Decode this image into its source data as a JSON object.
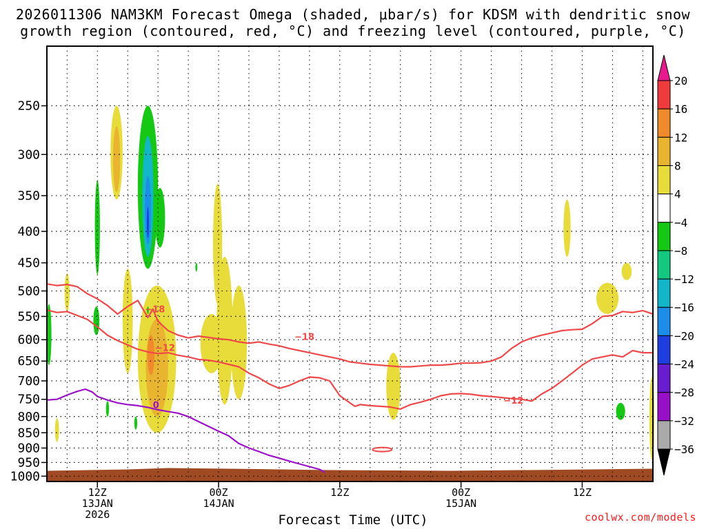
{
  "title_line1": "2026011306 NAM3KM Forecast Omega (shaded, μbar/s) for KDSM with dendritic snow",
  "title_line2": "growth region (contoured, red, °C) and freezing level (contoured, purple, °C)",
  "credit": "coolwx.com/models",
  "chart_data": {
    "type": "heatmap",
    "title": "2026011306 NAM3KM Forecast Omega (shaded, μbar/s) for KDSM with dendritic snow growth region (contoured, red, °C) and freezing level (contoured, purple, °C)",
    "xlabel": "Forecast Time (UTC)",
    "ylabel": "",
    "x_unit": "hours from 2026-01-13 07Z",
    "xlim": [
      0,
      60
    ],
    "ylim": [
      1020,
      200
    ],
    "y_scale": "log-pressure",
    "y_ticks": [
      250,
      300,
      350,
      400,
      450,
      500,
      550,
      600,
      650,
      700,
      750,
      800,
      850,
      900,
      950,
      1000
    ],
    "x_ticks": [
      {
        "x": 5,
        "label": [
          "12Z",
          "13JAN",
          "2026"
        ]
      },
      {
        "x": 17,
        "label": [
          "00Z",
          "14JAN"
        ]
      },
      {
        "x": 29,
        "label": [
          "12Z"
        ]
      },
      {
        "x": 41,
        "label": [
          "00Z",
          "15JAN"
        ]
      },
      {
        "x": 53,
        "label": [
          "12Z"
        ]
      }
    ],
    "grid": true,
    "colorbar": {
      "labels": [
        "20",
        "16",
        "12",
        "8",
        "4",
        "−4",
        "−8",
        "−12",
        "−16",
        "−20",
        "−24",
        "−28",
        "−32",
        "−36"
      ],
      "top_color": "#e8198f",
      "colors": [
        "#ef3b3b",
        "#f08a2a",
        "#e9b430",
        "#e8dc3a",
        "#ffffff",
        "#14c814",
        "#12c97f",
        "#12b6c8",
        "#1c8de8",
        "#1f3ee0",
        "#6a1cd0",
        "#9710c8",
        "#aaaaaa"
      ],
      "bottom_color": "#000000"
    },
    "terrain": {
      "color": "#a04a24",
      "pressure": 975
    },
    "contours": [
      {
        "level": "−18",
        "color": "#f04848",
        "x": [
          0,
          1,
          2,
          3,
          4,
          5,
          6,
          7,
          8,
          9,
          10,
          10.5,
          11,
          12,
          13,
          14,
          15,
          16,
          17,
          18,
          19,
          20,
          21,
          22,
          23,
          24,
          25,
          26,
          27,
          28,
          29,
          30,
          31,
          32,
          33,
          34,
          35,
          36,
          37,
          38,
          39,
          40,
          41,
          42,
          43,
          44,
          45,
          46,
          47,
          48,
          49,
          50,
          51,
          52,
          53,
          54,
          55,
          56,
          57,
          58,
          59,
          60
        ],
        "p": [
          487,
          490,
          488,
          492,
          505,
          515,
          528,
          545,
          530,
          518,
          552,
          535,
          560,
          580,
          590,
          596,
          592,
          595,
          598,
          600,
          605,
          608,
          605,
          610,
          614,
          620,
          625,
          630,
          635,
          640,
          645,
          652,
          655,
          658,
          660,
          662,
          664,
          664,
          662,
          660,
          660,
          658,
          655,
          655,
          654,
          650,
          640,
          620,
          605,
          596,
          590,
          585,
          580,
          578,
          577,
          565,
          550,
          548,
          540,
          542,
          538,
          545
        ],
        "labels": [
          {
            "x": 10.7,
            "p": 535,
            "text": "−18"
          },
          {
            "x": 25.5,
            "p": 593,
            "text": "−18"
          }
        ]
      },
      {
        "level": "−12",
        "color": "#f04848",
        "x": [
          0,
          1,
          2,
          3,
          4,
          5,
          6,
          7,
          8,
          9,
          10,
          11,
          12,
          13,
          14,
          15,
          16,
          17,
          18,
          19,
          20,
          21,
          22,
          23,
          24,
          25,
          26,
          27,
          28,
          29,
          30,
          30.5,
          31,
          32,
          33,
          34,
          35,
          36,
          37,
          38,
          39,
          40,
          41,
          42,
          43,
          44,
          45,
          46,
          47,
          48,
          49,
          50,
          51,
          52,
          53,
          54,
          55,
          56,
          57,
          58,
          59,
          60
        ],
        "p": [
          537,
          542,
          540,
          548,
          556,
          572,
          590,
          602,
          612,
          622,
          628,
          632,
          630,
          636,
          640,
          646,
          648,
          652,
          658,
          664,
          680,
          692,
          708,
          720,
          712,
          700,
          690,
          692,
          700,
          740,
          760,
          770,
          765,
          768,
          770,
          772,
          778,
          765,
          758,
          750,
          740,
          735,
          734,
          736,
          740,
          742,
          745,
          748,
          750,
          755,
          735,
          720,
          700,
          680,
          660,
          645,
          640,
          635,
          640,
          625,
          630,
          630
        ],
        "labels": [
          {
            "x": 11.7,
            "p": 618,
            "text": "−12"
          },
          {
            "x": 46.2,
            "p": 752,
            "text": "−12"
          }
        ]
      },
      {
        "level": "0",
        "color": "#9b10c8",
        "x": [
          0,
          1,
          2,
          3,
          3.8,
          4.5,
          5,
          6,
          7,
          8,
          9,
          10,
          11,
          12,
          13,
          14,
          15,
          16,
          17,
          18,
          19,
          20,
          21,
          22,
          23,
          24,
          25,
          26,
          27,
          27.5
        ],
        "p": [
          752,
          750,
          738,
          728,
          722,
          730,
          742,
          752,
          760,
          765,
          768,
          773,
          780,
          785,
          790,
          800,
          815,
          830,
          845,
          860,
          885,
          900,
          912,
          925,
          935,
          945,
          955,
          965,
          975,
          985
        ],
        "labels": [
          {
            "x": 10.8,
            "p": 765,
            "text": "0"
          }
        ]
      }
    ],
    "omega_areas": [
      {
        "value": 6,
        "color": "#e8dc3a",
        "cx": 6.9,
        "p1": 250,
        "p2": 355,
        "rx": 0.6
      },
      {
        "value": 10,
        "color": "#e9b430",
        "cx": 6.9,
        "p1": 270,
        "p2": 345,
        "rx": 0.35
      },
      {
        "value": -8,
        "color": "#14c814",
        "cx": 10.0,
        "p1": 250,
        "p2": 460,
        "rx": 1.0
      },
      {
        "value": -12,
        "color": "#12b6c8",
        "cx": 10.0,
        "p1": 280,
        "p2": 440,
        "rx": 0.55
      },
      {
        "value": -16,
        "color": "#1c8de8",
        "cx": 10.0,
        "p1": 325,
        "p2": 420,
        "rx": 0.3
      },
      {
        "value": -20,
        "color": "#1f3ee0",
        "cx": 10.0,
        "p1": 365,
        "p2": 410,
        "rx": 0.1
      },
      {
        "value": -6,
        "color": "#14c814",
        "cx": 11.2,
        "p1": 340,
        "p2": 425,
        "rx": 0.5
      },
      {
        "value": -6,
        "color": "#14c814",
        "cx": 5.0,
        "p1": 330,
        "p2": 470,
        "rx": 0.25
      },
      {
        "value": 6,
        "color": "#e8dc3a",
        "cx": 8.0,
        "p1": 460,
        "p2": 680,
        "rx": 0.5
      },
      {
        "value": 6,
        "color": "#e8dc3a",
        "cx": 10.9,
        "p1": 490,
        "p2": 850,
        "rx": 1.9
      },
      {
        "value": 10,
        "color": "#e9b430",
        "cx": 10.9,
        "p1": 555,
        "p2": 800,
        "rx": 1.1
      },
      {
        "value": 14,
        "color": "#f08a2a",
        "cx": 10.3,
        "p1": 590,
        "p2": 685,
        "rx": 0.35
      },
      {
        "value": 5,
        "color": "#e8dc3a",
        "cx": 16.9,
        "p1": 335,
        "p2": 525,
        "rx": 0.45
      },
      {
        "value": 5,
        "color": "#e8dc3a",
        "cx": 16.3,
        "p1": 545,
        "p2": 680,
        "rx": 1.1
      },
      {
        "value": 5,
        "color": "#e8dc3a",
        "cx": 17.6,
        "p1": 440,
        "p2": 765,
        "rx": 0.8
      },
      {
        "value": 5,
        "color": "#e8dc3a",
        "cx": 19.0,
        "p1": 490,
        "p2": 750,
        "rx": 0.8
      },
      {
        "value": 5,
        "color": "#e8dc3a",
        "cx": 2.0,
        "p1": 468,
        "p2": 540,
        "rx": 0.25
      },
      {
        "value": 5,
        "color": "#e8dc3a",
        "cx": 1.0,
        "p1": 805,
        "p2": 880,
        "rx": 0.2
      },
      {
        "value": -6,
        "color": "#14c814",
        "cx": 4.9,
        "p1": 530,
        "p2": 590,
        "rx": 0.3
      },
      {
        "value": -6,
        "color": "#14c814",
        "cx": 0.2,
        "p1": 525,
        "p2": 660,
        "rx": 0.25
      },
      {
        "value": -6,
        "color": "#14c814",
        "cx": 6.0,
        "p1": 755,
        "p2": 800,
        "rx": 0.15
      },
      {
        "value": -6,
        "color": "#14c814",
        "cx": 8.8,
        "p1": 800,
        "p2": 840,
        "rx": 0.15
      },
      {
        "value": -6,
        "color": "#14c814",
        "cx": 14.8,
        "p1": 450,
        "p2": 465,
        "rx": 0.1
      },
      {
        "value": -6,
        "color": "#14c814",
        "cx": 10.0,
        "p1": 530,
        "p2": 545,
        "rx": 0.1
      },
      {
        "value": 5,
        "color": "#e8dc3a",
        "cx": 34.3,
        "p1": 630,
        "p2": 810,
        "rx": 0.7
      },
      {
        "value": 5,
        "color": "#e8dc3a",
        "cx": 51.5,
        "p1": 355,
        "p2": 440,
        "rx": 0.35
      },
      {
        "value": 5,
        "color": "#e8dc3a",
        "cx": 55.5,
        "p1": 485,
        "p2": 545,
        "rx": 1.1
      },
      {
        "value": 5,
        "color": "#e8dc3a",
        "cx": 57.4,
        "p1": 450,
        "p2": 480,
        "rx": 0.5
      },
      {
        "value": -6,
        "color": "#14c814",
        "cx": 56.8,
        "p1": 760,
        "p2": 810,
        "rx": 0.45
      },
      {
        "value": 5,
        "color": "#e8dc3a",
        "cx": 59.9,
        "p1": 690,
        "p2": 940,
        "rx": 0.25
      }
    ],
    "small_contour": {
      "x": 33.2,
      "p": 905,
      "color": "#f04848"
    }
  }
}
